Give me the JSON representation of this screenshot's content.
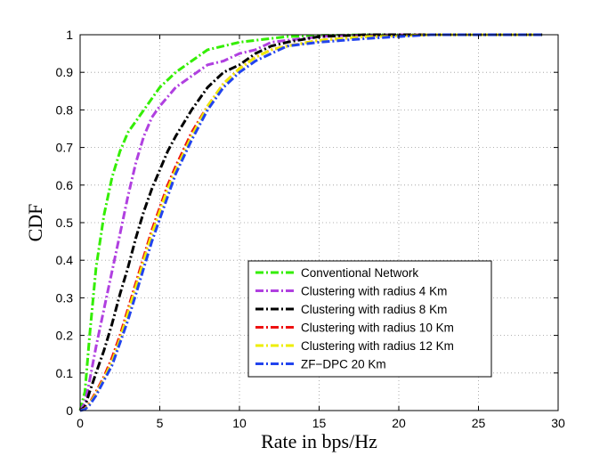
{
  "chart_data": {
    "type": "line",
    "title": "",
    "xlabel": "Rate in bps/Hz",
    "ylabel": "CDF",
    "xlim": [
      0,
      30
    ],
    "ylim": [
      0,
      1
    ],
    "xticks": [
      "0",
      "5",
      "10",
      "15",
      "20",
      "25",
      "30"
    ],
    "yticks": [
      "0",
      "0.1",
      "0.2",
      "0.3",
      "0.4",
      "0.5",
      "0.6",
      "0.7",
      "0.8",
      "0.9",
      "1"
    ],
    "grid": true,
    "legend_position": "lower-right",
    "series": [
      {
        "name": "Conventional Network",
        "color": "#33ee00",
        "x": [
          0,
          0.3,
          0.6,
          1.0,
          1.5,
          2.0,
          2.5,
          3.0,
          3.5,
          4.0,
          5.0,
          6.0,
          7.0,
          8.0,
          9.0,
          10.0,
          11.0,
          12.0,
          13.0,
          15.0,
          18.0,
          22.0,
          28.0
        ],
        "y": [
          0,
          0.05,
          0.2,
          0.38,
          0.52,
          0.62,
          0.69,
          0.74,
          0.77,
          0.8,
          0.86,
          0.9,
          0.93,
          0.96,
          0.97,
          0.98,
          0.985,
          0.99,
          0.995,
          0.998,
          1.0,
          1.0,
          1.0
        ]
      },
      {
        "name": "Clustering with radius 4 Km",
        "color": "#b040e0",
        "x": [
          0,
          0.3,
          0.6,
          1.0,
          1.5,
          2.0,
          2.5,
          3.0,
          3.5,
          4.0,
          4.5,
          5.0,
          6.0,
          7.0,
          8.0,
          9.0,
          10.0,
          11.0,
          12.0,
          14.0,
          16.0,
          20.0,
          28.0
        ],
        "y": [
          0,
          0.02,
          0.08,
          0.17,
          0.27,
          0.37,
          0.47,
          0.57,
          0.66,
          0.73,
          0.78,
          0.81,
          0.86,
          0.89,
          0.92,
          0.93,
          0.95,
          0.96,
          0.98,
          0.99,
          0.998,
          1.0,
          1.0
        ]
      },
      {
        "name": "Clustering with radius 8 Km",
        "color": "#000000",
        "x": [
          0,
          0.3,
          0.6,
          1.0,
          1.5,
          2.0,
          2.5,
          3.0,
          3.5,
          4.0,
          4.5,
          5.0,
          5.5,
          6.0,
          7.0,
          8.0,
          9.0,
          10.0,
          11.0,
          12.0,
          13.0,
          15.0,
          18.0,
          22.0,
          29.0
        ],
        "y": [
          0,
          0.01,
          0.05,
          0.1,
          0.16,
          0.23,
          0.31,
          0.38,
          0.46,
          0.53,
          0.59,
          0.64,
          0.69,
          0.73,
          0.8,
          0.86,
          0.9,
          0.92,
          0.95,
          0.97,
          0.98,
          0.995,
          1.0,
          1.0,
          1.0
        ]
      },
      {
        "name": "Clustering with radius 10 Km",
        "color": "#ee1111",
        "x": [
          0,
          0.3,
          0.6,
          1.0,
          1.5,
          2.0,
          2.5,
          3.0,
          3.5,
          4.0,
          4.5,
          5.0,
          5.5,
          6.0,
          7.0,
          8.0,
          9.0,
          10.0,
          11.0,
          12.0,
          13.0,
          15.0,
          18.0,
          22.0,
          29.0
        ],
        "y": [
          0,
          0.005,
          0.02,
          0.05,
          0.09,
          0.14,
          0.2,
          0.27,
          0.34,
          0.41,
          0.48,
          0.54,
          0.6,
          0.65,
          0.74,
          0.81,
          0.87,
          0.91,
          0.94,
          0.96,
          0.97,
          0.985,
          0.995,
          1.0,
          1.0
        ]
      },
      {
        "name": "Clustering with radius 12 Km",
        "color": "#eeee00",
        "x": [
          0,
          0.3,
          0.6,
          1.0,
          1.5,
          2.0,
          2.5,
          3.0,
          3.5,
          4.0,
          4.5,
          5.0,
          5.5,
          6.0,
          7.0,
          8.0,
          9.0,
          10.0,
          11.0,
          12.0,
          13.0,
          15.0,
          18.0,
          22.0,
          29.0
        ],
        "y": [
          0,
          0.004,
          0.018,
          0.045,
          0.085,
          0.13,
          0.19,
          0.26,
          0.33,
          0.4,
          0.47,
          0.53,
          0.59,
          0.64,
          0.73,
          0.81,
          0.87,
          0.91,
          0.94,
          0.96,
          0.97,
          0.985,
          0.995,
          1.0,
          1.0
        ]
      },
      {
        "name": "ZF−DPC 20 Km",
        "color": "#2244ee",
        "x": [
          0,
          0.3,
          0.6,
          1.0,
          1.5,
          2.0,
          2.5,
          3.0,
          3.5,
          4.0,
          4.5,
          5.0,
          5.5,
          6.0,
          7.0,
          8.0,
          9.0,
          10.0,
          11.0,
          12.0,
          13.0,
          15.0,
          18.0,
          22.0,
          29.0
        ],
        "y": [
          0,
          0.003,
          0.015,
          0.04,
          0.08,
          0.12,
          0.18,
          0.24,
          0.31,
          0.38,
          0.45,
          0.51,
          0.57,
          0.63,
          0.72,
          0.8,
          0.86,
          0.9,
          0.93,
          0.95,
          0.97,
          0.98,
          0.99,
          1.0,
          1.0
        ]
      }
    ]
  }
}
